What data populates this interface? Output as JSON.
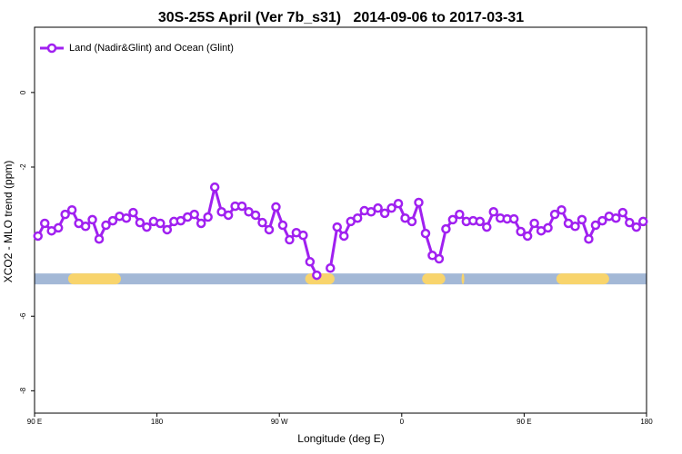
{
  "chart_data": {
    "type": "line",
    "title": "30S-25S April (Ver 7b_s31)   2014-09-06 to 2017-03-31",
    "x_label": "Longitude (deg E)",
    "y_label": "XCO2 - MLO trend (ppm)",
    "xlim": [
      90,
      540
    ],
    "ylim": [
      1.75,
      -8.6
    ],
    "xticks": [
      {
        "value": 90,
        "label": "90 E"
      },
      180,
      {
        "value": 270,
        "label": "90 W"
      },
      {
        "value": 360,
        "label": "0"
      },
      {
        "value": 450,
        "label": "90 E"
      },
      {
        "value": 540,
        "label": "180"
      }
    ],
    "yticks": [
      0,
      -2,
      -6,
      -8
    ],
    "legend": "top-left",
    "grid": false,
    "land_mask": {
      "y": -5,
      "ocean_color": "#a3b8d6",
      "land_color": "#f8d46c",
      "land": [
        [
          114.7,
          153.5
        ],
        [
          289,
          310.6
        ],
        [
          375,
          392
        ],
        [
          404,
          406
        ],
        [
          473.7,
          512.5
        ]
      ]
    },
    "series": [
      {
        "name": "Land (Nadir&Glint) and Ocean (Glint)",
        "color": "#a020f0",
        "x": [
          92.5,
          97.5,
          102.5,
          107.5,
          112.5,
          117.5,
          122.5,
          127.5,
          132.5,
          137.5,
          142.5,
          147.5,
          152.5,
          157.5,
          162.5,
          167.5,
          172.5,
          177.5,
          182.5,
          187.5,
          192.5,
          197.5,
          202.5,
          207.5,
          212.5,
          217.5,
          222.5,
          227.5,
          232.5,
          237.5,
          242.5,
          247.5,
          252.5,
          257.5,
          262.5,
          267.5,
          272.5,
          277.5,
          282.5,
          287.5,
          292.5,
          297.5,
          302.5,
          307.5,
          312.5,
          317.5,
          322.5,
          327.5,
          332.5,
          337.5,
          342.5,
          347.5,
          352.5,
          357.5,
          362.5,
          367.5,
          372.5,
          377.5,
          382.5,
          387.5,
          392.5,
          397.5,
          402.5,
          407.5,
          412.5,
          417.5,
          422.5,
          427.5,
          432.5,
          437.5,
          442.5,
          447.5,
          452.5,
          457.5,
          462.5,
          467.5,
          472.5,
          477.5,
          482.5,
          487.5,
          492.5,
          497.5,
          502.5,
          507.5,
          512.5,
          517.5,
          522.5,
          527.5,
          532.5,
          537.5
        ],
        "values": [
          -3.85,
          -3.51,
          -3.71,
          -3.63,
          -3.27,
          -3.15,
          -3.51,
          -3.59,
          -3.41,
          -3.93,
          -3.56,
          -3.44,
          -3.32,
          -3.37,
          -3.22,
          -3.49,
          -3.61,
          -3.46,
          -3.51,
          -3.68,
          -3.46,
          -3.44,
          -3.34,
          -3.27,
          -3.51,
          -3.34,
          -2.54,
          -3.2,
          -3.29,
          -3.05,
          -3.05,
          -3.2,
          -3.29,
          -3.49,
          -3.68,
          -3.07,
          -3.56,
          -3.95,
          -3.76,
          -3.83,
          -4.54,
          -4.9,
          null,
          -4.71,
          -3.61,
          -3.85,
          -3.46,
          -3.37,
          -3.17,
          -3.2,
          -3.1,
          -3.24,
          -3.1,
          -2.98,
          -3.37,
          -3.46,
          -2.95,
          -3.78,
          -4.37,
          -4.46,
          -3.66,
          -3.41,
          -3.27,
          -3.46,
          -3.44,
          -3.46,
          -3.61,
          -3.2,
          -3.37,
          -3.39,
          -3.39,
          -3.73,
          -3.85,
          -3.51,
          -3.71,
          -3.63,
          -3.27,
          -3.15,
          -3.51,
          -3.59,
          -3.41,
          -3.93,
          -3.56,
          -3.44,
          -3.32,
          -3.37,
          -3.22,
          -3.49,
          -3.61,
          -3.46
        ]
      }
    ]
  }
}
